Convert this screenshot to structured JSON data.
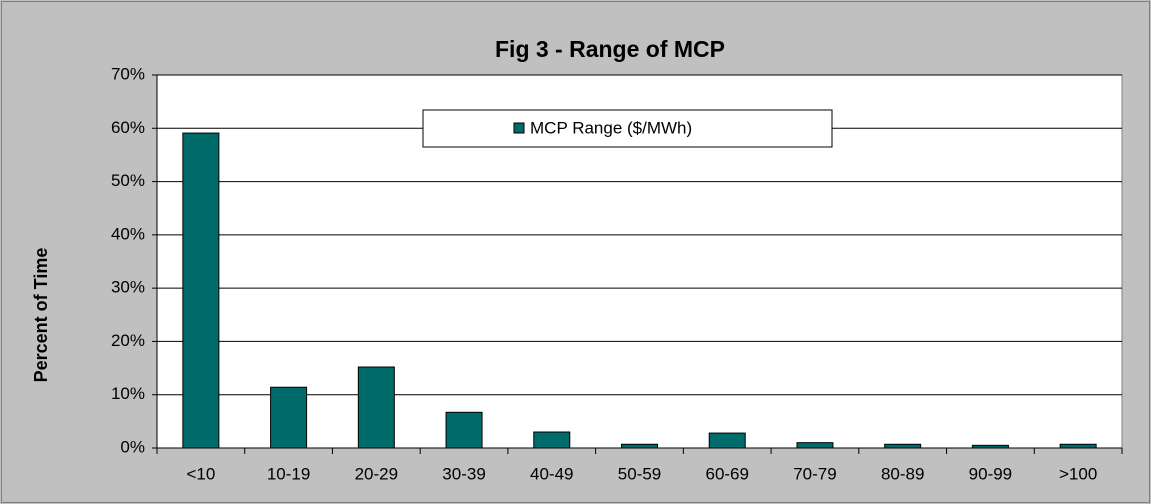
{
  "chart_data": {
    "type": "bar",
    "title": "Fig 3 - Range of MCP",
    "ylabel": "Percent of Time",
    "categories": [
      "<10",
      "10-19",
      "20-29",
      "30-39",
      "40-49",
      "50-59",
      "60-69",
      "70-79",
      "80-89",
      "90-99",
      ">100"
    ],
    "series": [
      {
        "name": "MCP Range ($/MWh)",
        "color": "#006b6b",
        "values": [
          59.1,
          11.4,
          15.2,
          6.7,
          3.0,
          0.7,
          2.8,
          1.0,
          0.7,
          0.5,
          0.7
        ]
      }
    ],
    "ylim": [
      0,
      70
    ],
    "yticks": [
      {
        "value": 0,
        "label": "0%"
      },
      {
        "value": 10,
        "label": "10%"
      },
      {
        "value": 20,
        "label": "20%"
      },
      {
        "value": 30,
        "label": "30%"
      },
      {
        "value": 40,
        "label": "40%"
      },
      {
        "value": 50,
        "label": "50%"
      },
      {
        "value": 60,
        "label": "60%"
      },
      {
        "value": 70,
        "label": "70%"
      }
    ],
    "grid": true,
    "legend": "top"
  }
}
